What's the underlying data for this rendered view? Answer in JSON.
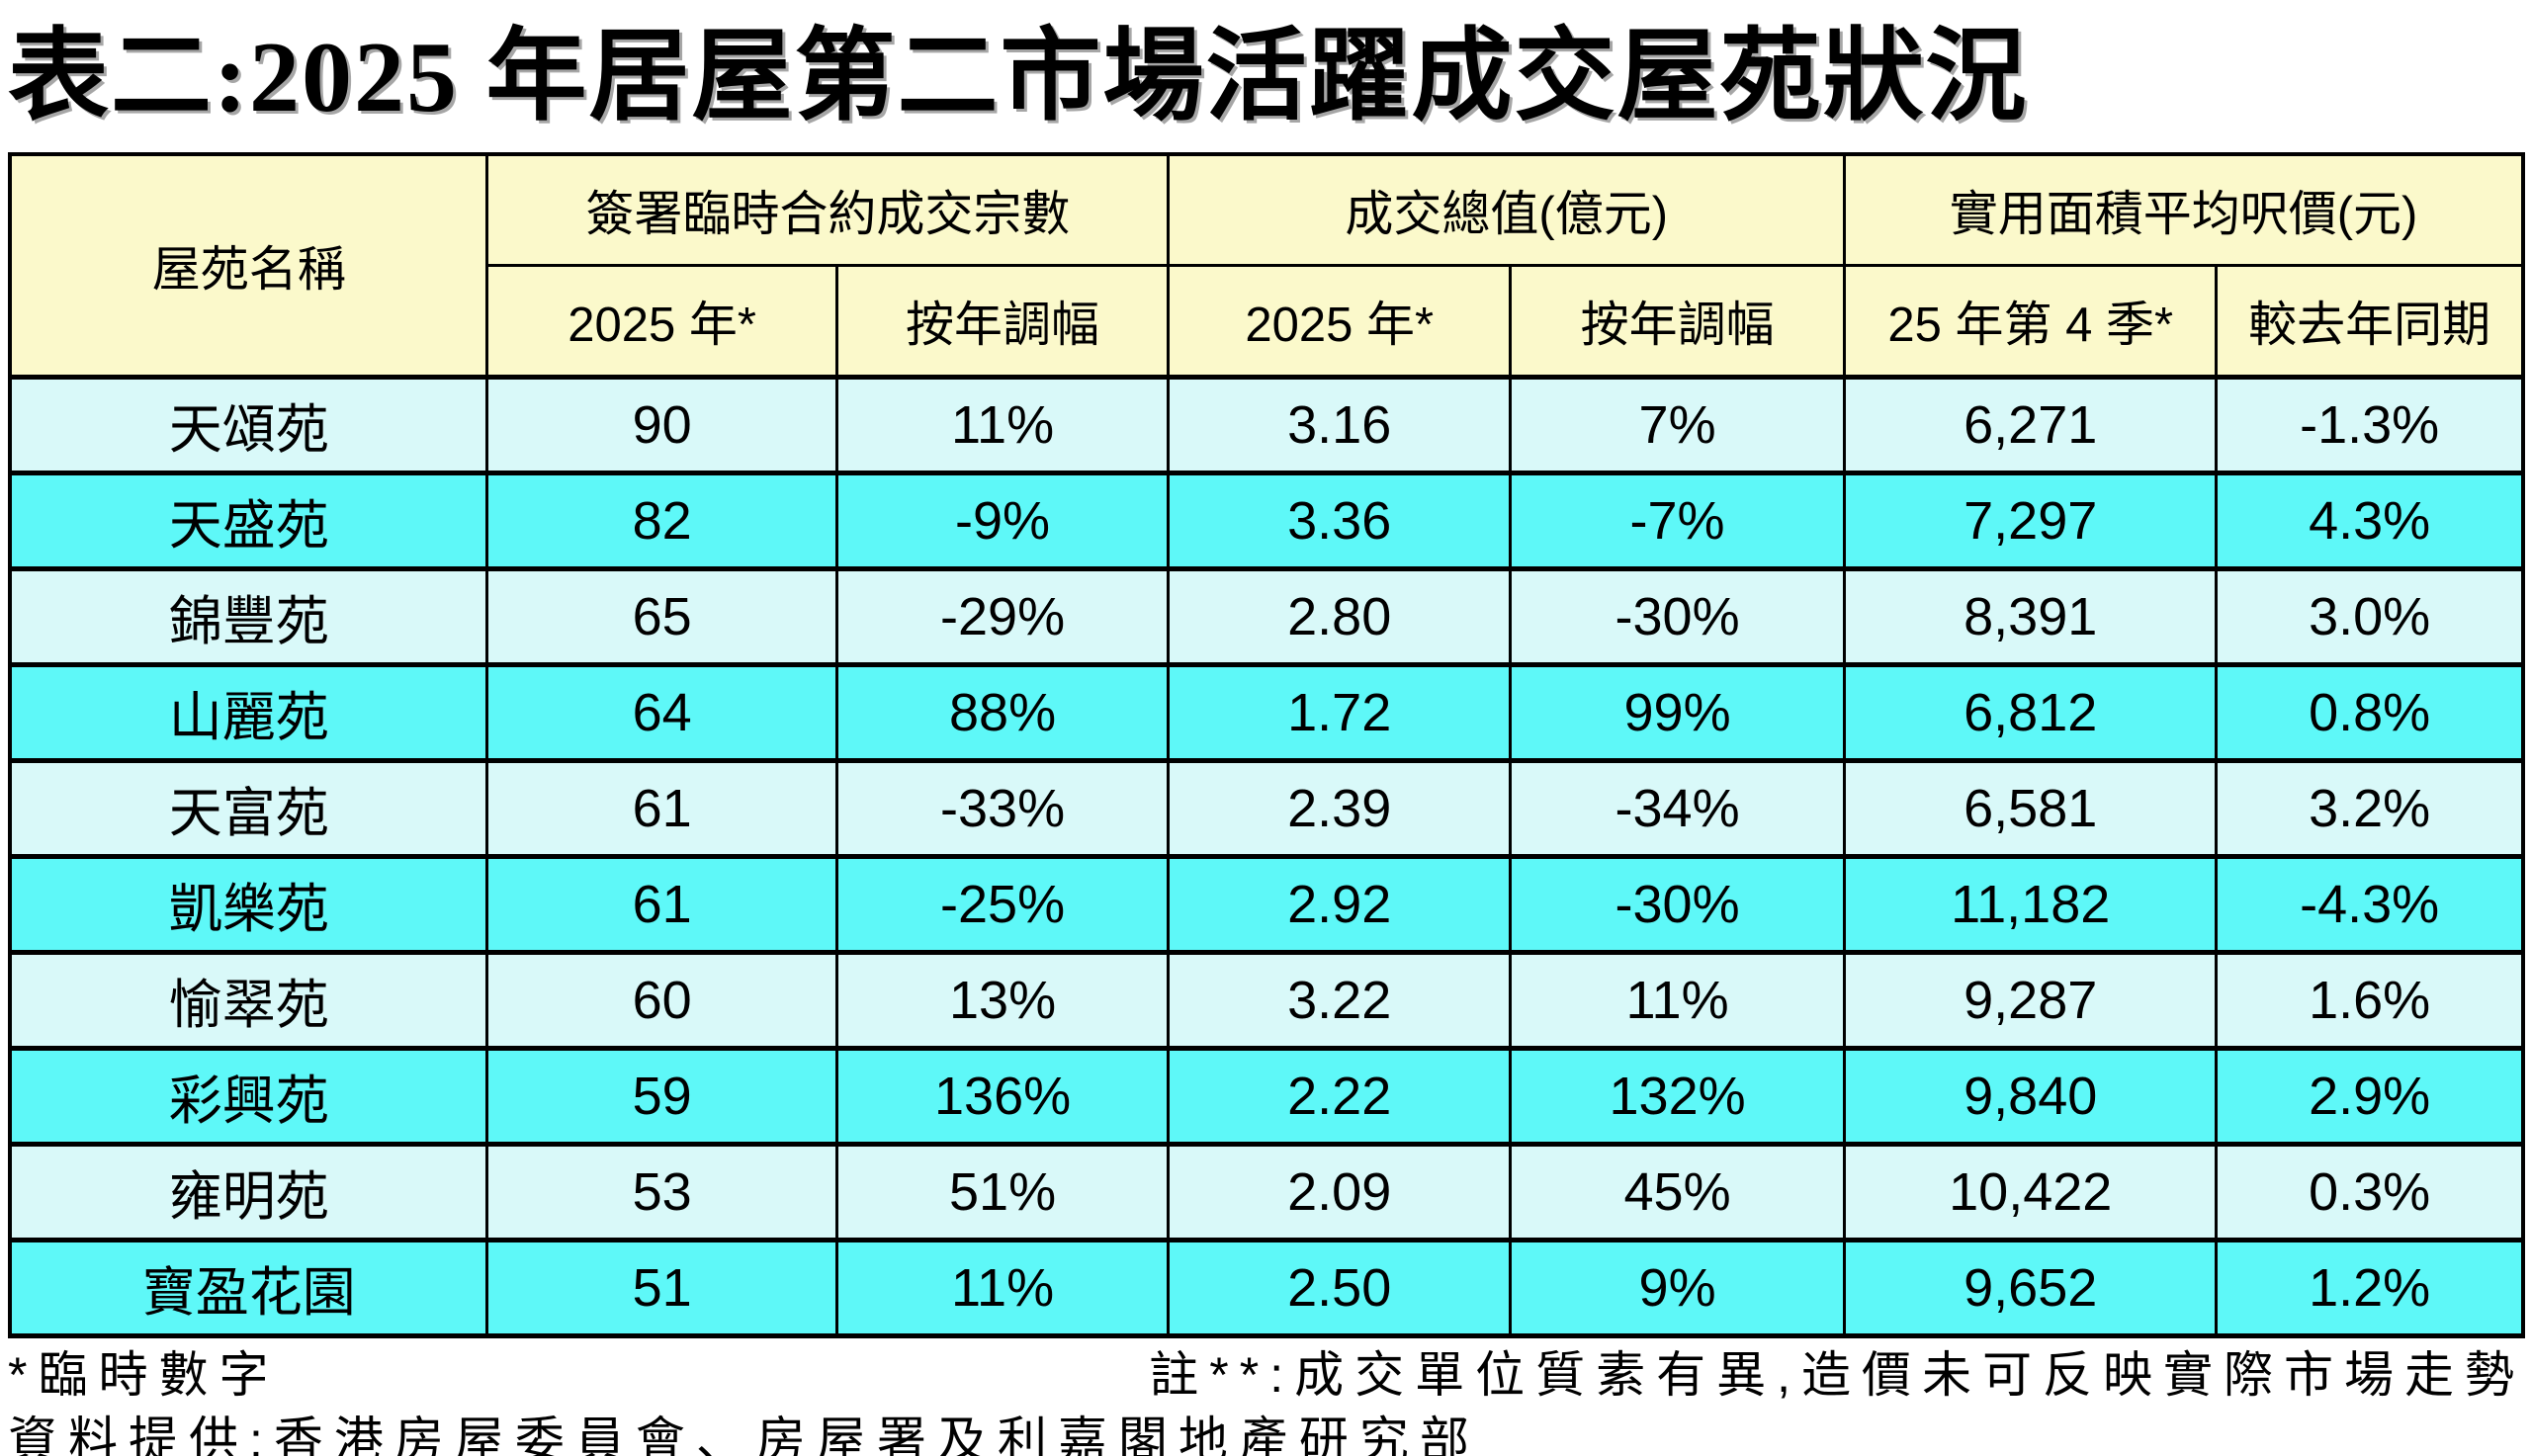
{
  "title": "表二:2025 年居屋第二市場活躍成交屋苑狀況",
  "colors": {
    "header_bg": "#FBF9CB",
    "row_light_bg": "#D9F9F9",
    "row_bright_bg": "#5EF8F8",
    "border": "#000000",
    "text": "#000000",
    "page_bg": "#FFFFFF"
  },
  "table": {
    "corner_header": "屋苑名稱",
    "groups": [
      {
        "label": "簽署臨時合約成交宗數"
      },
      {
        "label": "成交總值(億元)"
      },
      {
        "label": "實用面積平均呎價(元)"
      }
    ],
    "sub_headers": [
      "2025 年*",
      "按年調幅",
      "2025 年*",
      "按年調幅",
      "25 年第 4 季*",
      "較去年同期"
    ],
    "column_keys": [
      "name",
      "deals_2025",
      "deals_yoy",
      "value_2025",
      "value_yoy",
      "psf_q4",
      "psf_yoy"
    ],
    "rows": [
      {
        "name": "天頌苑",
        "deals_2025": "90",
        "deals_yoy": "11%",
        "value_2025": "3.16",
        "value_yoy": "7%",
        "psf_q4": "6,271",
        "psf_yoy": "-1.3%"
      },
      {
        "name": "天盛苑",
        "deals_2025": "82",
        "deals_yoy": "-9%",
        "value_2025": "3.36",
        "value_yoy": "-7%",
        "psf_q4": "7,297",
        "psf_yoy": "4.3%"
      },
      {
        "name": "錦豐苑",
        "deals_2025": "65",
        "deals_yoy": "-29%",
        "value_2025": "2.80",
        "value_yoy": "-30%",
        "psf_q4": "8,391",
        "psf_yoy": "3.0%"
      },
      {
        "name": "山麗苑",
        "deals_2025": "64",
        "deals_yoy": "88%",
        "value_2025": "1.72",
        "value_yoy": "99%",
        "psf_q4": "6,812",
        "psf_yoy": "0.8%"
      },
      {
        "name": "天富苑",
        "deals_2025": "61",
        "deals_yoy": "-33%",
        "value_2025": "2.39",
        "value_yoy": "-34%",
        "psf_q4": "6,581",
        "psf_yoy": "3.2%"
      },
      {
        "name": "凱樂苑",
        "deals_2025": "61",
        "deals_yoy": "-25%",
        "value_2025": "2.92",
        "value_yoy": "-30%",
        "psf_q4": "11,182",
        "psf_yoy": "-4.3%"
      },
      {
        "name": "愉翠苑",
        "deals_2025": "60",
        "deals_yoy": "13%",
        "value_2025": "3.22",
        "value_yoy": "11%",
        "psf_q4": "9,287",
        "psf_yoy": "1.6%"
      },
      {
        "name": "彩興苑",
        "deals_2025": "59",
        "deals_yoy": "136%",
        "value_2025": "2.22",
        "value_yoy": "132%",
        "psf_q4": "9,840",
        "psf_yoy": "2.9%"
      },
      {
        "name": "雍明苑",
        "deals_2025": "53",
        "deals_yoy": "51%",
        "value_2025": "2.09",
        "value_yoy": "45%",
        "psf_q4": "10,422",
        "psf_yoy": "0.3%"
      },
      {
        "name": "寶盈花園",
        "deals_2025": "51",
        "deals_yoy": "11%",
        "value_2025": "2.50",
        "value_yoy": "9%",
        "psf_q4": "9,652",
        "psf_yoy": "1.2%"
      }
    ]
  },
  "footnotes": {
    "provisional": "*臨時數字",
    "note": "註**:成交單位質素有異,造價未可反映實際市場走勢",
    "source": "資料提供:香港房屋委員會、房屋署及利嘉閣地產研究部"
  },
  "chart_data": {
    "type": "table",
    "title": "表二:2025 年居屋第二市場活躍成交屋苑狀況",
    "columns": [
      "屋苑名稱",
      "簽署臨時合約成交宗數 2025 年*",
      "簽署臨時合約成交宗數 按年調幅",
      "成交總值(億元) 2025 年*",
      "成交總值(億元) 按年調幅",
      "實用面積平均呎價(元) 25 年第 4 季*",
      "實用面積平均呎價(元) 較去年同期"
    ],
    "rows": [
      [
        "天頌苑",
        90,
        "11%",
        3.16,
        "7%",
        6271,
        "-1.3%"
      ],
      [
        "天盛苑",
        82,
        "-9%",
        3.36,
        "-7%",
        7297,
        "4.3%"
      ],
      [
        "錦豐苑",
        65,
        "-29%",
        2.8,
        "-30%",
        8391,
        "3.0%"
      ],
      [
        "山麗苑",
        64,
        "88%",
        1.72,
        "99%",
        6812,
        "0.8%"
      ],
      [
        "天富苑",
        61,
        "-33%",
        2.39,
        "-34%",
        6581,
        "3.2%"
      ],
      [
        "凱樂苑",
        61,
        "-25%",
        2.92,
        "-30%",
        11182,
        "-4.3%"
      ],
      [
        "愉翠苑",
        60,
        "13%",
        3.22,
        "11%",
        9287,
        "1.6%"
      ],
      [
        "彩興苑",
        59,
        "136%",
        2.22,
        "132%",
        9840,
        "2.9%"
      ],
      [
        "雍明苑",
        53,
        "51%",
        2.09,
        "45%",
        10422,
        "0.3%"
      ],
      [
        "寶盈花園",
        51,
        "11%",
        2.5,
        "9%",
        9652,
        "1.2%"
      ]
    ]
  }
}
